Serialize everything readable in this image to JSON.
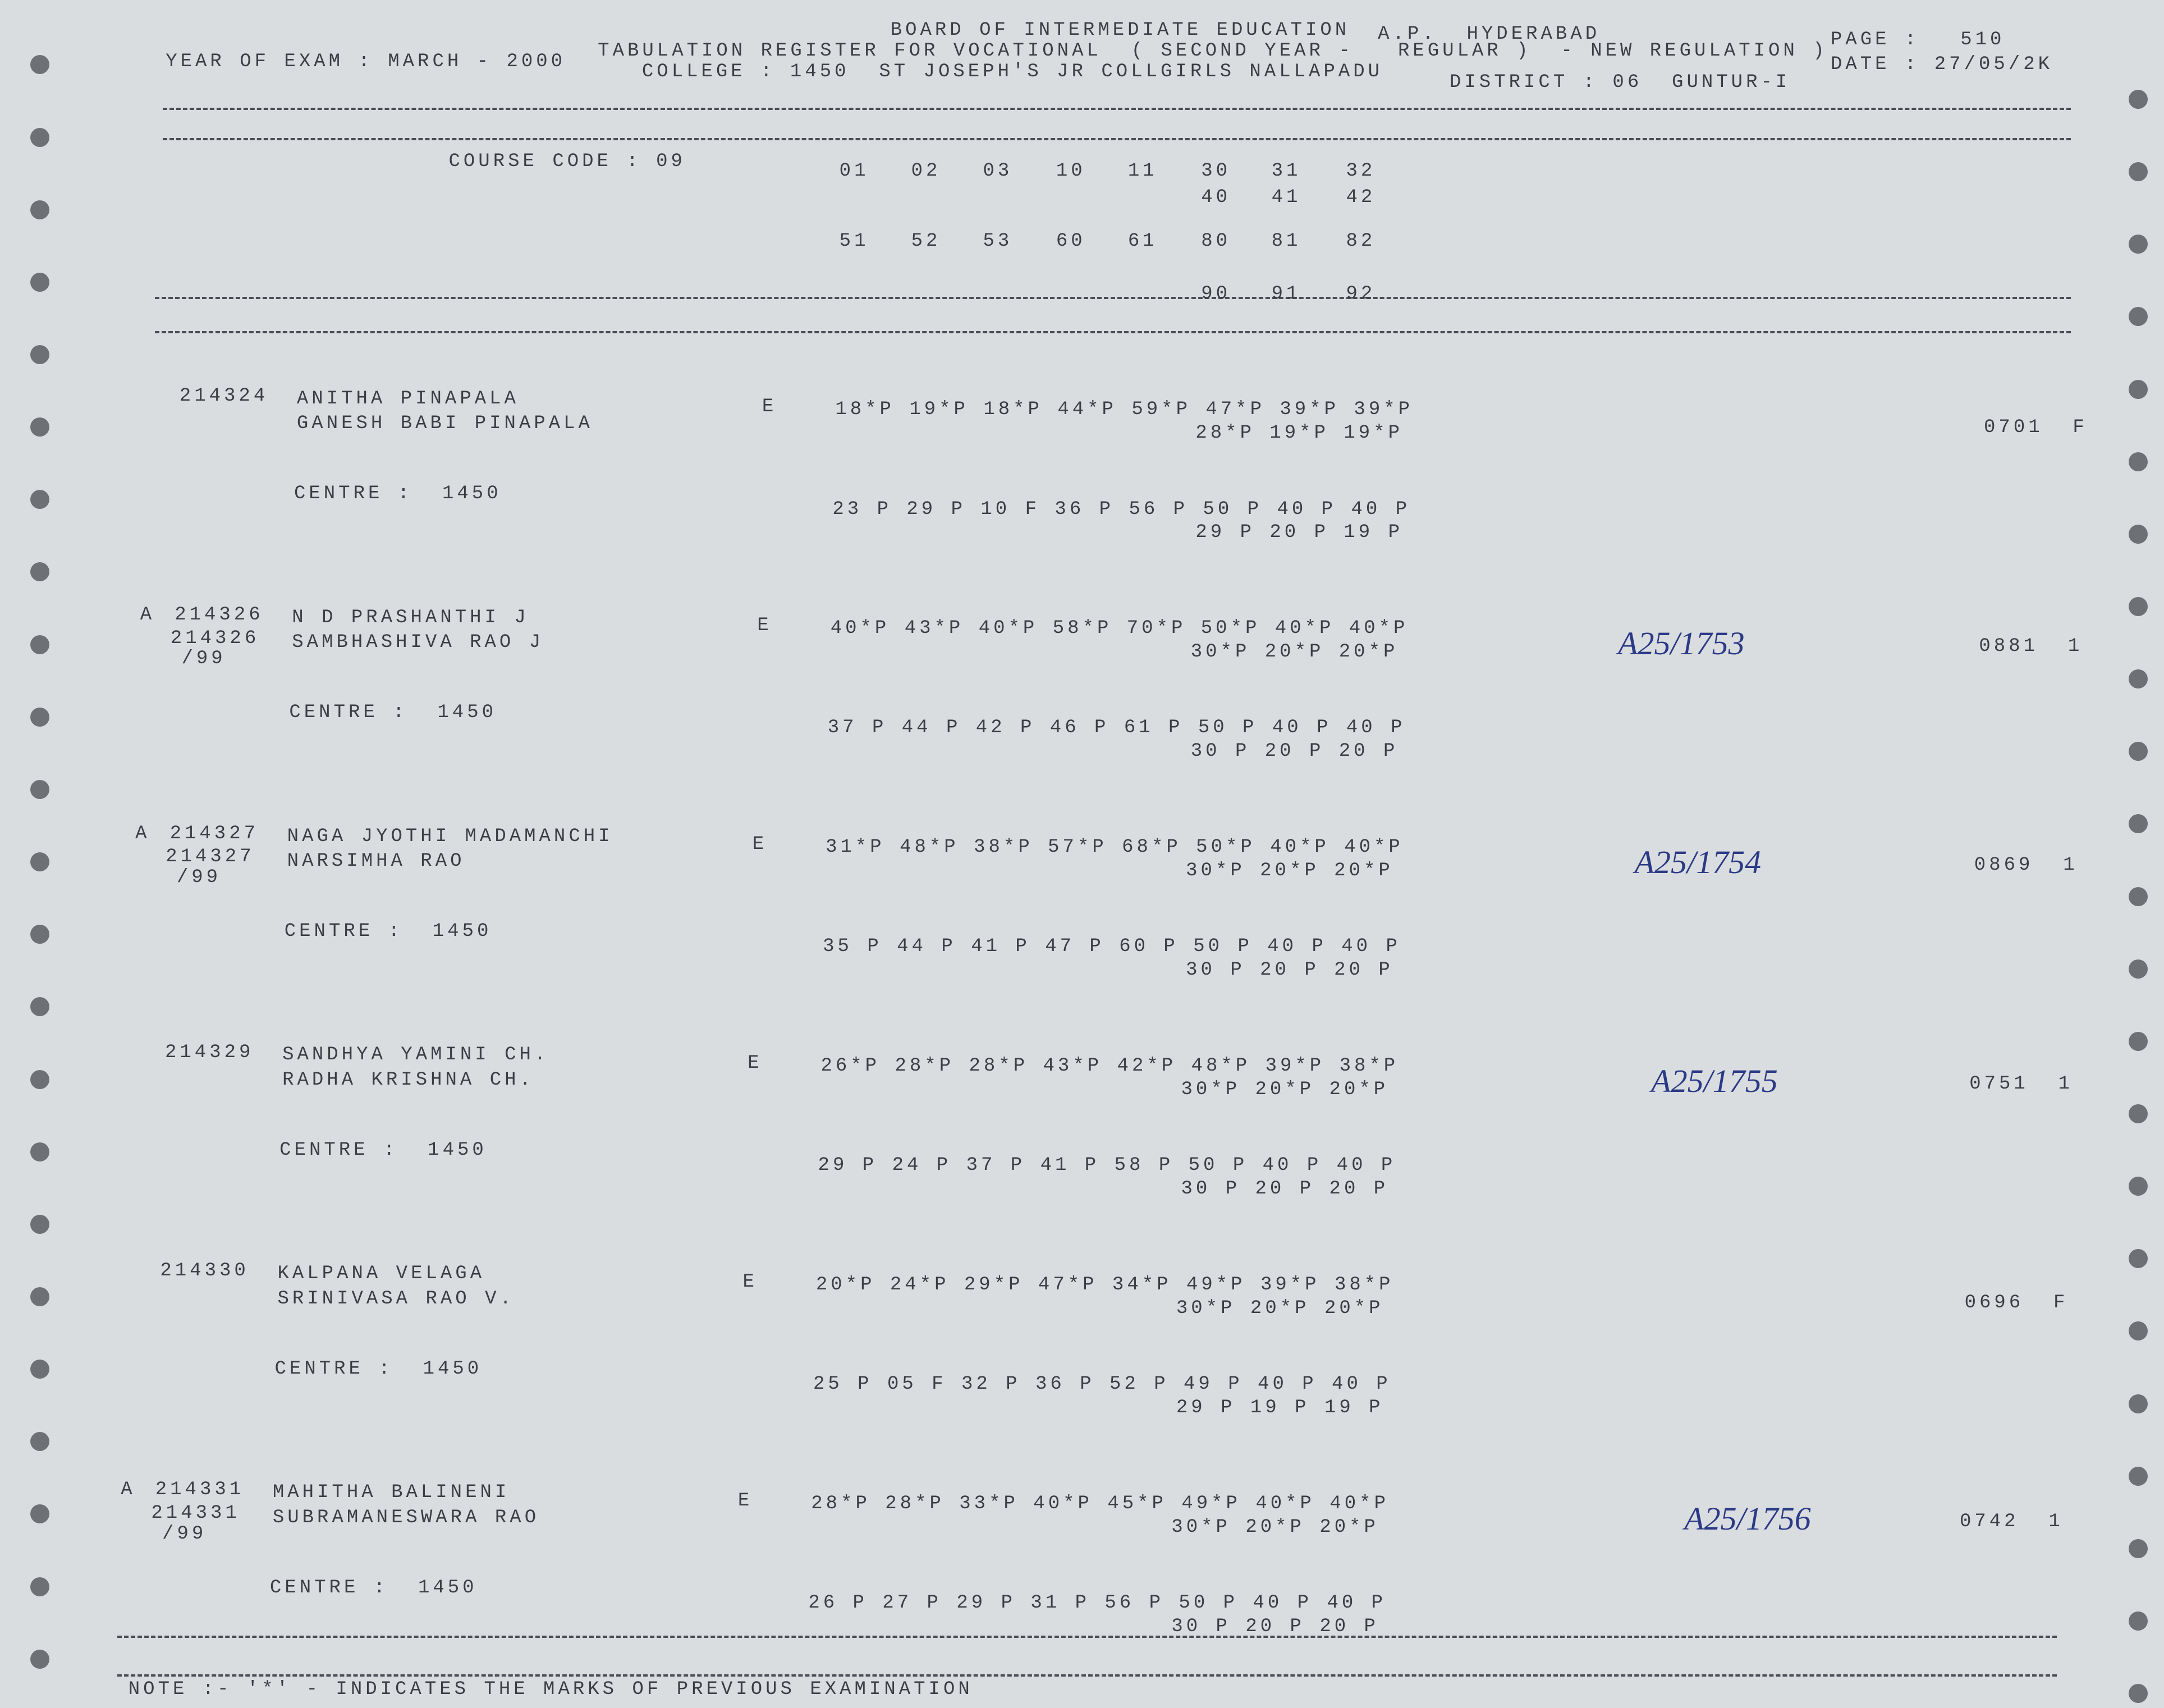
{
  "header": {
    "board": "BOARD OF INTERMEDIATE EDUCATION",
    "place": "A.P.  HYDERABAD",
    "page_label": "PAGE :",
    "page": "510",
    "year": "YEAR OF EXAM : MARCH - 2000",
    "register": "TABULATION REGISTER FOR VOCATIONAL  ( SECOND YEAR -   REGULAR )  - NEW REGULATION )",
    "date": "DATE : 27/05/2K",
    "college": "COLLEGE : 1450  ST JOSEPH'S JR COLLGIRLS NALLAPADU",
    "district": "DISTRICT : 06  GUNTUR-I"
  },
  "course": {
    "label": "COURSE CODE : 09",
    "row1": [
      "01",
      "02",
      "03",
      "10",
      "11",
      "30",
      "31",
      "32"
    ],
    "row2": [
      "40",
      "41",
      "42"
    ],
    "row3": [
      "51",
      "52",
      "53",
      "60",
      "61",
      "80",
      "81",
      "82"
    ],
    "row4": [
      "90",
      "91",
      "92"
    ]
  },
  "students": [
    {
      "id": "214324",
      "name": "ANITHA PINAPALA",
      "father": "GANESH BABI PINAPALA",
      "medium": "E",
      "previous": "18*P 19*P 18*P 44*P 59*P 47*P 39*P 39*P",
      "previous2": "28*P 19*P 19*P",
      "centre": "CENTRE :  1450",
      "current": "23 P 29 P 10 F 36 P 56 P 50 P 40 P 40 P",
      "current2": "29 P 20 P 19 P",
      "result": "0701  F"
    },
    {
      "prefix": "A",
      "id": "214326",
      "id2": "214326",
      "code": "/99",
      "name": "N D PRASHANTHI J",
      "father": "SAMBHASHIVA RAO J",
      "medium": "E",
      "previous": "40*P 43*P 40*P 58*P 70*P 50*P 40*P 40*P",
      "previous2": "30*P 20*P 20*P",
      "centre": "CENTRE :  1450",
      "current": "37 P 44 P 42 P 46 P 61 P 50 P 40 P 40 P",
      "current2": "30 P 20 P 20 P",
      "handwritten": "A25/1753",
      "result": "0881  1"
    },
    {
      "prefix": "A",
      "id": "214327",
      "id2": "214327",
      "code": "/99",
      "name": "NAGA JYOTHI MADAMANCHI",
      "father": "NARSIMHA RAO",
      "medium": "E",
      "previous": "31*P 48*P 38*P 57*P 68*P 50*P 40*P 40*P",
      "previous2": "30*P 20*P 20*P",
      "centre": "CENTRE :  1450",
      "current": "35 P 44 P 41 P 47 P 60 P 50 P 40 P 40 P",
      "current2": "30 P 20 P 20 P",
      "handwritten": "A25/1754",
      "result": "0869  1"
    },
    {
      "id": "214329",
      "name": "SANDHYA YAMINI CH.",
      "father": "RADHA KRISHNA CH.",
      "medium": "E",
      "previous": "26*P 28*P 28*P 43*P 42*P 48*P 39*P 38*P",
      "previous2": "30*P 20*P 20*P",
      "centre": "CENTRE :  1450",
      "current": "29 P 24 P 37 P 41 P 58 P 50 P 40 P 40 P",
      "current2": "30 P 20 P 20 P",
      "handwritten": "A25/1755",
      "result": "0751  1"
    },
    {
      "id": "214330",
      "name": "KALPANA VELAGA",
      "father": "SRINIVASA RAO V.",
      "medium": "E",
      "previous": "20*P 24*P 29*P 47*P 34*P 49*P 39*P 38*P",
      "previous2": "30*P 20*P 20*P",
      "centre": "CENTRE :  1450",
      "current": "25 P 05 F 32 P 36 P 52 P 49 P 40 P 40 P",
      "current2": "29 P 19 P 19 P",
      "result": "0696  F"
    },
    {
      "prefix": "A",
      "id": "214331",
      "id2": "214331",
      "code": "/99",
      "name": "MAHITHA BALINENI",
      "father": "SUBRAMANESWARA RAO",
      "medium": "E",
      "previous": "28*P 28*P 33*P 40*P 45*P 49*P 40*P 40*P",
      "previous2": "30*P 20*P 20*P",
      "centre": "CENTRE :  1450",
      "current": "26 P 27 P 29 P 31 P 56 P 50 P 40 P 40 P",
      "current2": "30 P 20 P 20 P",
      "handwritten": "A25/1756",
      "result": "0742  1"
    }
  ],
  "note": "NOTE :- '*' - INDICATES THE MARKS OF PREVIOUS EXAMINATION"
}
